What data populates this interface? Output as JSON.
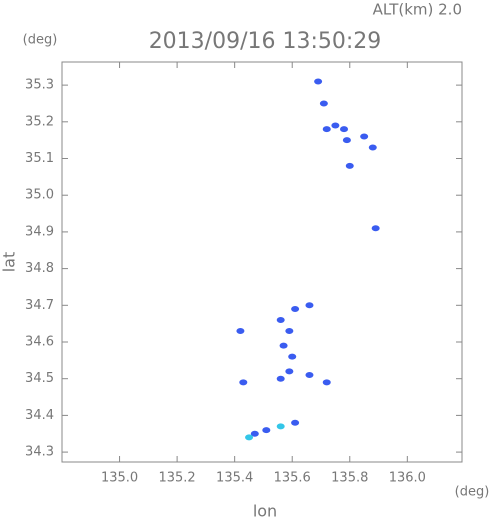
{
  "chart_data": {
    "type": "scatter",
    "title": "2013/09/16 13:50:29",
    "subtitle": "ALT(km) 2.0",
    "y_unit": "(deg)",
    "x_unit": "(deg)",
    "y_label": "lat",
    "x_label": "lon",
    "xlim": [
      134.8,
      136.19
    ],
    "ylim": [
      34.273,
      35.363
    ],
    "xticks": [
      {
        "value": 135.0,
        "label": "135.0"
      },
      135.2,
      135.4,
      135.6,
      135.8,
      {
        "value": 136.0,
        "label": "136.0"
      }
    ],
    "yticks": [
      34.3,
      34.4,
      34.5,
      34.6,
      34.7,
      34.8,
      34.9,
      {
        "value": 35.0,
        "label": "35.0"
      },
      35.1,
      35.2,
      35.3
    ],
    "series": [
      {
        "color": "#3a5cf0",
        "x": [
          135.69,
          135.71,
          135.75,
          135.72,
          135.78,
          135.79,
          135.85,
          135.88,
          135.8,
          135.89,
          135.42,
          135.56,
          135.59,
          135.61,
          135.66,
          135.57,
          135.6,
          135.59,
          135.56,
          135.66,
          135.72,
          135.43,
          135.61,
          135.51,
          135.47
        ],
        "values": [
          35.31,
          35.25,
          35.19,
          35.18,
          35.18,
          35.15,
          35.16,
          35.13,
          35.08,
          34.91,
          34.63,
          34.66,
          34.63,
          34.69,
          34.7,
          34.59,
          34.56,
          34.52,
          34.5,
          34.51,
          34.49,
          34.49,
          34.38,
          34.36,
          34.35
        ]
      },
      {
        "color": "#33c6e8",
        "x": [
          135.56,
          135.45
        ],
        "values": [
          34.37,
          34.34
        ]
      }
    ]
  }
}
